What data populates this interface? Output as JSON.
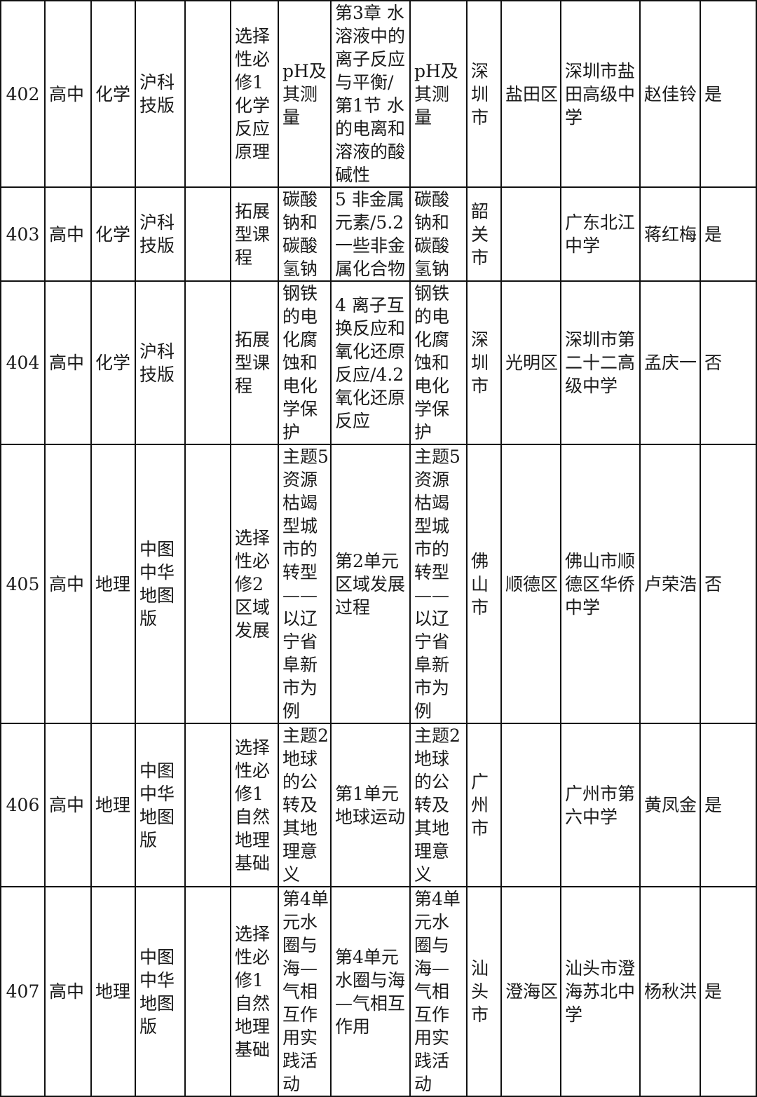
{
  "rows": [
    {
      "no": "402",
      "stage": "高中",
      "subject": "化学",
      "edition": "沪科\n技版",
      "blank": "",
      "module": "选择\n性必\n修1\n化学\n反应\n原理",
      "title": "pH及\n其测\n量",
      "chapter": "第3章 水\n溶液中的\n离子反应\n与平衡/\n第1节 水\n的电离和\n溶液的酸\n碱性",
      "lesson": "pH及\n其测\n量",
      "city": "深\n圳\n市",
      "district": "盐田区",
      "school": "深圳市盐\n田高级中\n学",
      "teacher": "赵佳铃",
      "flag": "是"
    },
    {
      "no": "403",
      "stage": "高中",
      "subject": "化学",
      "edition": "沪科\n技版",
      "blank": "",
      "module": "拓展\n型课\n程",
      "title": "碳酸\n钠和\n碳酸\n氢钠",
      "chapter": "5 非金属\n元素/5.2\n一些非金\n属化合物",
      "lesson": "碳酸\n钠和\n碳酸\n氢钠",
      "city": "韶\n关\n市",
      "district": "",
      "school": "广东北江\n中学",
      "teacher": "蒋红梅",
      "flag": "是"
    },
    {
      "no": "404",
      "stage": "高中",
      "subject": "化学",
      "edition": "沪科\n技版",
      "blank": "",
      "module": "拓展\n型课\n程",
      "title": "钢铁\n的电\n化腐\n蚀和\n电化\n学保\n护",
      "chapter": "4 离子互\n换反应和\n氧化还原\n反应/4.2\n氧化还原\n反应",
      "lesson": "钢铁\n的电\n化腐\n蚀和\n电化\n学保\n护",
      "city": "深\n圳\n市",
      "district": "光明区",
      "school": "深圳市第\n二十二高\n级中学",
      "teacher": "孟庆一",
      "flag": "否"
    },
    {
      "no": "405",
      "stage": "高中",
      "subject": "地理",
      "edition": "中图\n中华\n地图\n版",
      "blank": "",
      "module": "选择\n性必\n修2\n区域\n发展",
      "title": "主题5\n资源\n枯竭\n型城\n市的\n转型\n——\n以辽\n宁省\n阜新\n市为\n例",
      "chapter": "第2单元\n区域发展\n过程",
      "lesson": "主题5\n资源\n枯竭\n型城\n市的\n转型\n——\n以辽\n宁省\n阜新\n市为\n例",
      "city": "佛\n山\n市",
      "district": "顺德区",
      "school": "佛山市顺\n德区华侨\n中学",
      "teacher": "卢荣浩",
      "flag": "否"
    },
    {
      "no": "406",
      "stage": "高中",
      "subject": "地理",
      "edition": "中图\n中华\n地图\n版",
      "blank": "",
      "module": "选择\n性必\n修1\n自然\n地理\n基础",
      "title": "主题2\n地球\n的公\n转及\n其地\n理意\n义",
      "chapter": "第1单元\n地球运动",
      "lesson": "主题2\n地球\n的公\n转及\n其地\n理意\n义",
      "city": "广\n州\n市",
      "district": "",
      "school": "广州市第\n六中学",
      "teacher": "黄凤金",
      "flag": "是"
    },
    {
      "no": "407",
      "stage": "高中",
      "subject": "地理",
      "edition": "中图\n中华\n地图\n版",
      "blank": "",
      "module": "选择\n性必\n修1\n自然\n地理\n基础",
      "title": "第4单\n元水\n圈与\n海—\n气相\n互作\n用实\n践活\n动",
      "chapter": "第4单元\n水圈与海\n—气相互\n作用",
      "lesson": "第4单\n元水\n圈与\n海—\n气相\n互作\n用实\n践活\n动",
      "city": "汕\n头\n市",
      "district": "澄海区",
      "school": "汕头市澄\n海苏北中\n学",
      "teacher": "杨秋洪",
      "flag": "是"
    }
  ]
}
